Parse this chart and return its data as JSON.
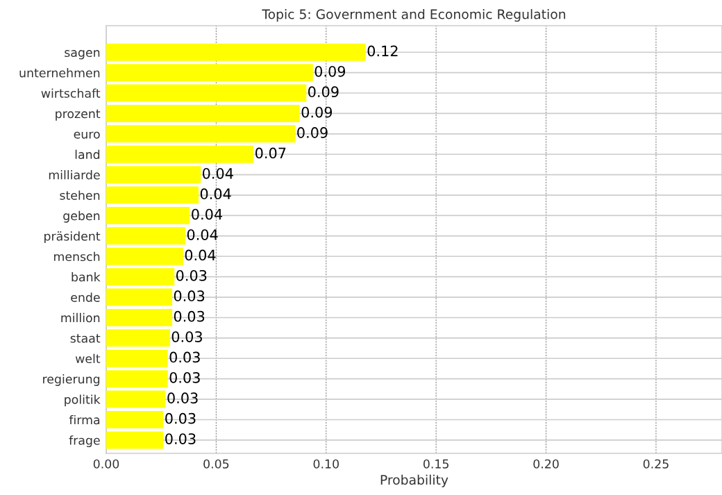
{
  "chart_data": {
    "type": "bar",
    "orientation": "horizontal",
    "title": "Topic 5: Government and Economic Regulation",
    "xlabel": "Probability",
    "categories": [
      "sagen",
      "unternehmen",
      "wirtschaft",
      "prozent",
      "euro",
      "land",
      "milliarde",
      "stehen",
      "geben",
      "präsident",
      "mensch",
      "bank",
      "ende",
      "million",
      "staat",
      "welt",
      "regierung",
      "politik",
      "firma",
      "frage"
    ],
    "values": [
      0.118,
      0.094,
      0.091,
      0.088,
      0.086,
      0.067,
      0.043,
      0.042,
      0.038,
      0.036,
      0.035,
      0.031,
      0.03,
      0.03,
      0.029,
      0.028,
      0.028,
      0.027,
      0.026,
      0.026
    ],
    "value_labels": [
      "0.12",
      "0.09",
      "0.09",
      "0.09",
      "0.09",
      "0.07",
      "0.04",
      "0.04",
      "0.04",
      "0.04",
      "0.04",
      "0.03",
      "0.03",
      "0.03",
      "0.03",
      "0.03",
      "0.03",
      "0.03",
      "0.03",
      "0.03"
    ],
    "color": "#ffff00",
    "xlim": [
      0,
      0.28
    ],
    "xticks": [
      {
        "value": 0,
        "label": "0.00"
      },
      0.05,
      {
        "value": 0.1,
        "label": "0.10"
      },
      0.15,
      {
        "value": 0.2,
        "label": "0.20"
      },
      0.25
    ],
    "grid": true
  }
}
